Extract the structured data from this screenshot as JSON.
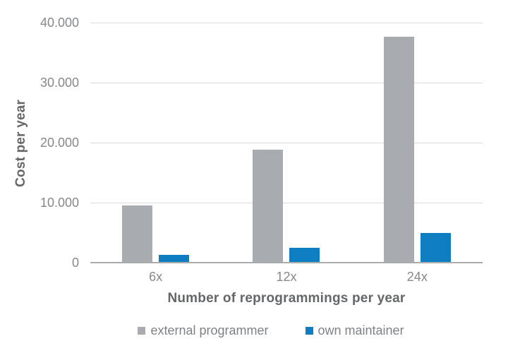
{
  "chart_data": {
    "type": "bar",
    "title": "",
    "categories": [
      "6x",
      "12x",
      "24x"
    ],
    "series": [
      {
        "name": "external programmer",
        "color": "#a8abaf",
        "values": [
          9375,
          18750,
          37500
        ]
      },
      {
        "name": "own maintainer",
        "color": "#0e7dc1",
        "values": [
          1200,
          2400,
          4800
        ]
      }
    ],
    "xlabel": "Number of reprogrammings per year",
    "ylabel": "Cost per year",
    "ylim": [
      0,
      40000
    ],
    "yticks": [
      {
        "value": 0,
        "label": "0"
      },
      {
        "value": 10000,
        "label": "10.000"
      },
      {
        "value": 20000,
        "label": "20.000"
      },
      {
        "value": 30000,
        "label": "30.000"
      },
      {
        "value": 40000,
        "label": "40.000"
      }
    ],
    "grid": true,
    "legend_position": "bottom",
    "colors": {
      "gridline": "#d9dadb",
      "axis_line": "#a9acae",
      "tick_text": "#85888b",
      "title_text": "#63676a",
      "legend_text": "#7e8285",
      "background": "#ffffff"
    }
  }
}
